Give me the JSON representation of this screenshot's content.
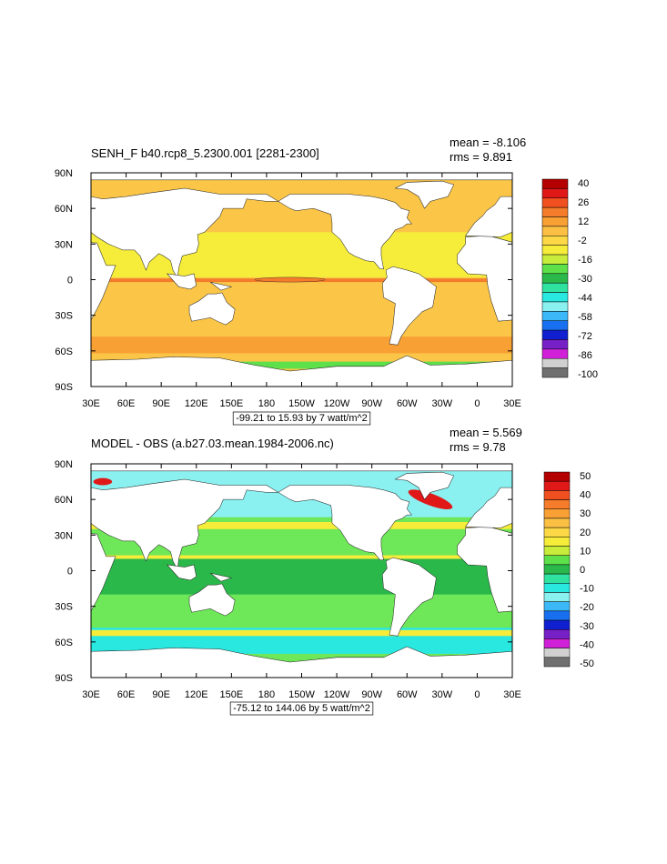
{
  "panels": [
    {
      "title": "SENH_F b40.rcp8_5.2300.001 [2281-2300]",
      "mean": "mean = -8.106",
      "rms": "rms = 9.891",
      "x_labels": [
        "30E",
        "60E",
        "90E",
        "120E",
        "150E",
        "180",
        "150W",
        "120W",
        "90W",
        "60W",
        "30W",
        "0",
        "30E"
      ],
      "y_labels": [
        "90N",
        "60N",
        "30N",
        "0",
        "30S",
        "60S",
        "90S"
      ],
      "range_note": "-99.21 to 15.93 by 7 watt/m^2",
      "colorbar": {
        "labels": [
          40,
          26,
          12,
          -2,
          -16,
          -30,
          -44,
          -58,
          -72,
          -86,
          -100
        ],
        "colors": [
          "#b40000",
          "#e01818",
          "#f05020",
          "#f47c2a",
          "#f8a034",
          "#fbbf44",
          "#fcd846",
          "#f6ec3a",
          "#c8ec3a",
          "#5ee04a",
          "#2ab84a",
          "#30e2a0",
          "#28e8e0",
          "#8af0f0",
          "#3cb8f8",
          "#1870f0",
          "#1020d0",
          "#7820c8",
          "#d020d8",
          "#d0d0d0",
          "#707070"
        ]
      }
    },
    {
      "title": "MODEL - OBS (a.b27.03.mean.1984-2006.nc)",
      "mean": "mean = 5.569",
      "rms": "rms = 9.78",
      "x_labels": [
        "30E",
        "60E",
        "90E",
        "120E",
        "150E",
        "180",
        "150W",
        "120W",
        "90W",
        "60W",
        "30W",
        "0",
        "30E"
      ],
      "y_labels": [
        "90N",
        "60N",
        "30N",
        "0",
        "30S",
        "60S",
        "90S"
      ],
      "range_note": "-75.12 to 144.06 by 5 watt/m^2",
      "colorbar": {
        "labels": [
          50,
          40,
          30,
          20,
          10,
          0,
          -10,
          -20,
          -30,
          -40,
          -50
        ],
        "colors": [
          "#b40000",
          "#e01818",
          "#f05020",
          "#f47c2a",
          "#f8a034",
          "#fbbf44",
          "#fcd846",
          "#f6ec3a",
          "#c8ec3a",
          "#5ee04a",
          "#2ab84a",
          "#30e2a0",
          "#28e8e0",
          "#8af0f0",
          "#3cb8f8",
          "#1870f0",
          "#1020d0",
          "#7820c8",
          "#d020d8",
          "#d0d0d0",
          "#707070"
        ]
      }
    }
  ]
}
